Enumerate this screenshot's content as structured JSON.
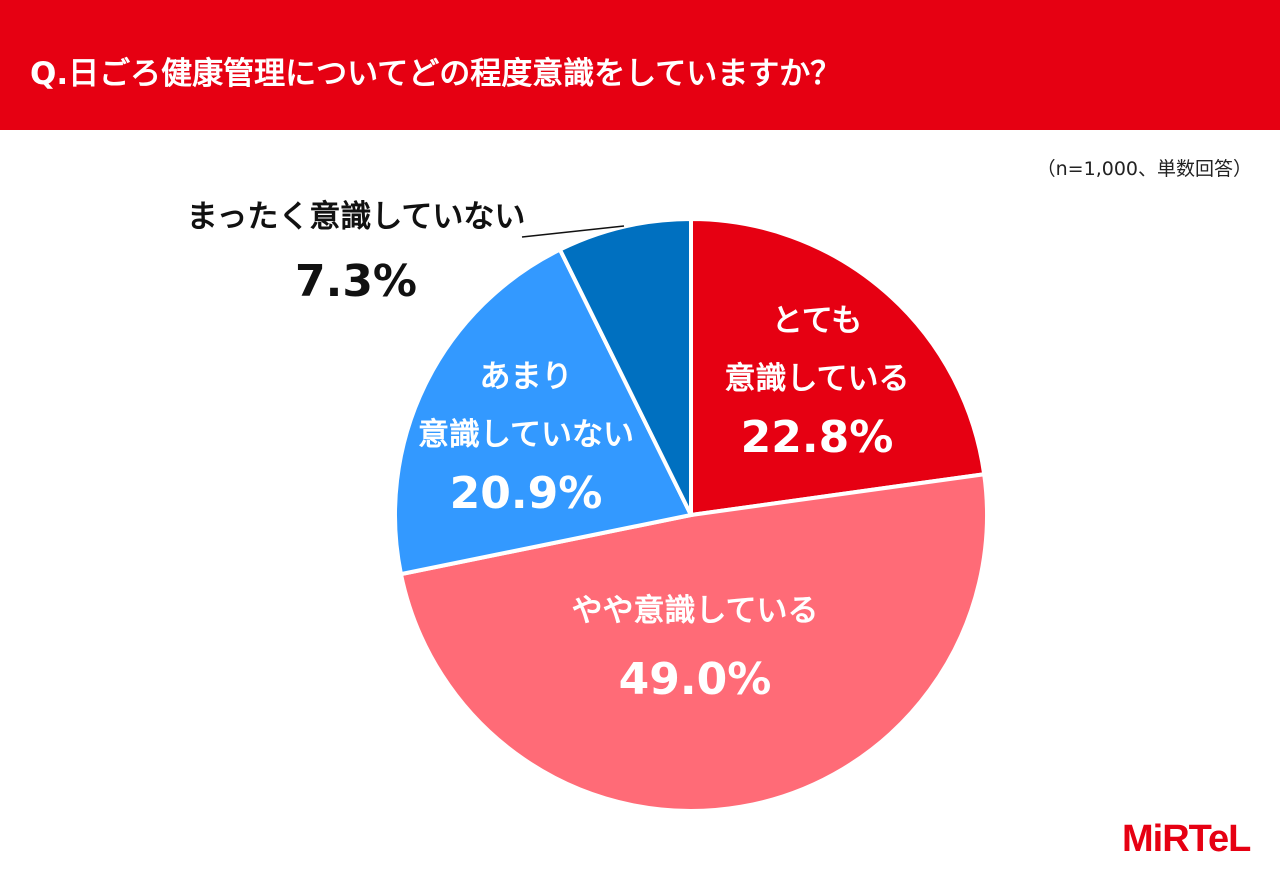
{
  "header": {
    "title": "Q.日ごろ健康管理についてどの程度意識をしていますか？"
  },
  "note": "（n=1,000、単数回答）",
  "logo": "MiRTeL",
  "chart_data": {
    "type": "pie",
    "title": "Q.日ごろ健康管理についてどの程度意識をしていますか？",
    "start": "top, clockwise",
    "slices": [
      {
        "label_lines": [
          "とても",
          "意識している"
        ],
        "label": "とても意識している",
        "value": 22.8,
        "value_label": "22.8%",
        "color": "#e60012"
      },
      {
        "label_lines": [
          "やや意識している"
        ],
        "label": "やや意識している",
        "value": 49.0,
        "value_label": "49.0%",
        "color": "#ff6b77"
      },
      {
        "label_lines": [
          "あまり",
          "意識していない"
        ],
        "label": "あまり意識していない",
        "value": 20.9,
        "value_label": "20.9%",
        "color": "#3399ff"
      },
      {
        "label_lines": [
          "まったく意識していない"
        ],
        "label": "まったく意識していない",
        "value": 7.3,
        "value_label": "7.3%",
        "color": "#0070c0"
      }
    ]
  }
}
